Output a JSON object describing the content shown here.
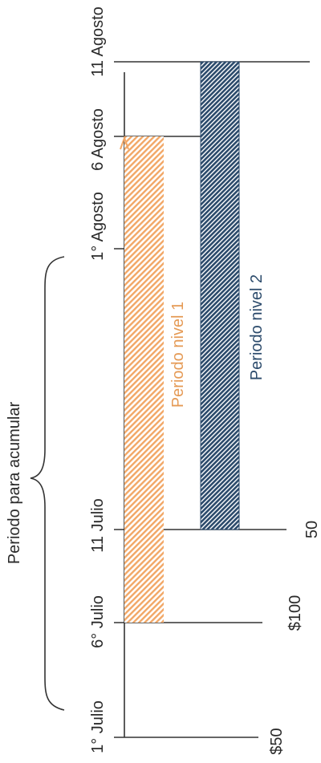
{
  "heading": "Periodo para acumular",
  "dates": [
    "1° Julio",
    "6° Julio",
    "11 Julio",
    "1° Agosto",
    "6 Agosto",
    "11 Agosto"
  ],
  "amounts": [
    "$50",
    "$100",
    "50"
  ],
  "bars": [
    {
      "label": "Periodo nivel 1",
      "color": "#f2a766",
      "label_color": "#e59a55"
    },
    {
      "label": "Periodo nivel 2",
      "color": "#2b4a6b",
      "label_color": "#2b4a6b"
    }
  ],
  "line_color": "#333333"
}
